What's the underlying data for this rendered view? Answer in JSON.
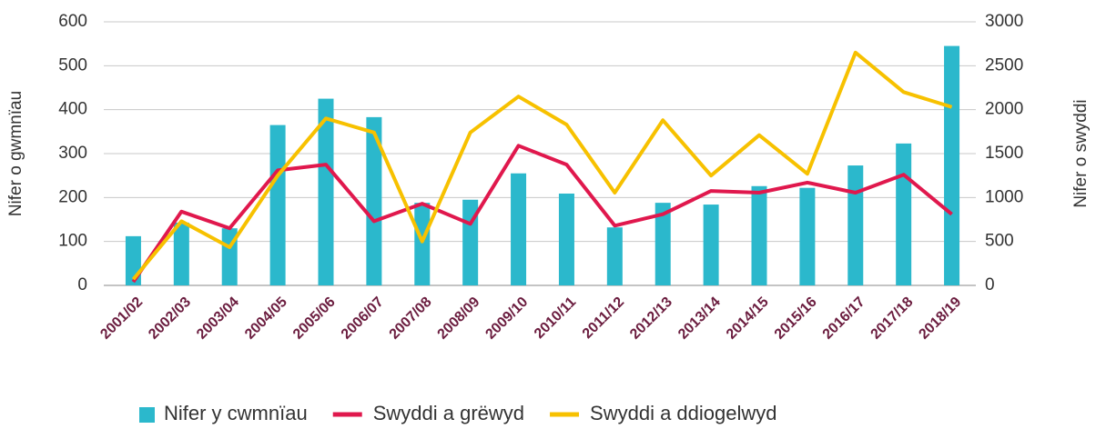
{
  "chart_data": {
    "type": "bar",
    "categories": [
      "2001/02",
      "2002/03",
      "2003/04",
      "2004/05",
      "2005/06",
      "2006/07",
      "2007/08",
      "2008/09",
      "2009/10",
      "2010/11",
      "2011/12",
      "2012/13",
      "2013/14",
      "2014/15",
      "2015/16",
      "2016/17",
      "2017/18",
      "2018/19"
    ],
    "series": [
      {
        "name": "Nifer y cwmnïau",
        "type": "bar",
        "color": "#2bb8cc",
        "values": [
          112,
          143,
          130,
          365,
          425,
          383,
          188,
          195,
          255,
          209,
          132,
          188,
          184,
          226,
          222,
          273,
          323,
          545
        ]
      },
      {
        "name": "Swyddi a grëwyd",
        "type": "line",
        "axis": "y2",
        "color": "#e0184d",
        "values": [
          40,
          840,
          650,
          1310,
          1375,
          730,
          930,
          700,
          1590,
          1375,
          680,
          810,
          1075,
          1055,
          1170,
          1055,
          1260,
          810
        ]
      },
      {
        "name": "Swyddi a ddiogelwyd",
        "type": "line",
        "axis": "y2",
        "color": "#f7c100",
        "values": [
          70,
          730,
          435,
          1250,
          1900,
          1740,
          500,
          1740,
          2150,
          1830,
          1055,
          1880,
          1250,
          1710,
          1270,
          2650,
          2200,
          2030
        ]
      }
    ],
    "ylabel": "Nifer o gwmnïau",
    "y2label": "Nifer o swyddi",
    "ylim": [
      0,
      600
    ],
    "yticks": [
      0,
      100,
      200,
      300,
      400,
      500,
      600
    ],
    "y2lim": [
      0,
      3000
    ],
    "y2ticks": [
      0,
      500,
      1000,
      1500,
      2000,
      2500,
      3000
    ],
    "grid": true,
    "legend": "bottom"
  }
}
